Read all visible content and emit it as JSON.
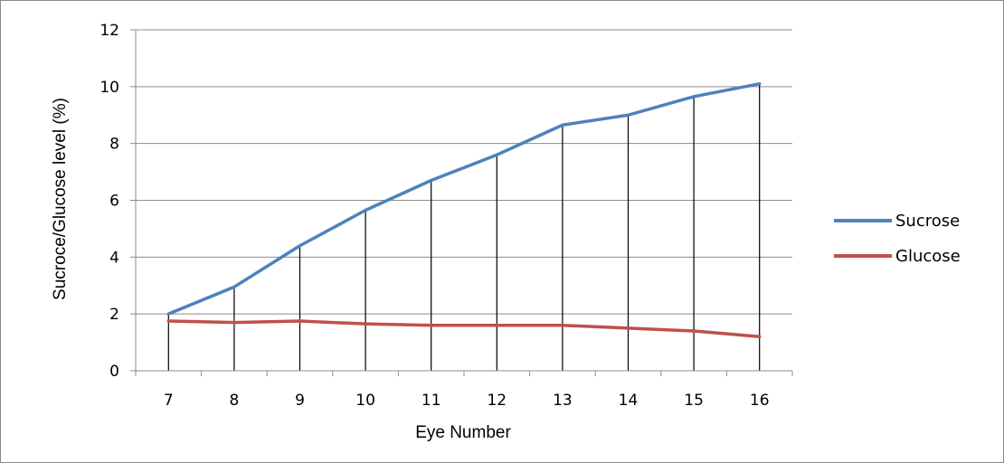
{
  "chart_data": {
    "type": "line",
    "title": "",
    "xlabel": "Eye Number",
    "ylabel": "Sucroce/Glucose level (%)",
    "categories": [
      "7",
      "8",
      "9",
      "10",
      "11",
      "12",
      "13",
      "14",
      "15",
      "16"
    ],
    "ylim": [
      0,
      12
    ],
    "yticks": [
      "0",
      "2",
      "4",
      "6",
      "8",
      "10",
      "12"
    ],
    "grid": true,
    "drop_lines": true,
    "legend_position": "right",
    "series": [
      {
        "name": "Sucrose",
        "color": "#4f81bd",
        "values": [
          2.0,
          2.95,
          4.4,
          5.65,
          6.7,
          7.6,
          8.65,
          9.0,
          9.65,
          10.1
        ]
      },
      {
        "name": "Glucose",
        "color": "#c0504d",
        "values": [
          1.75,
          1.7,
          1.75,
          1.65,
          1.6,
          1.6,
          1.6,
          1.5,
          1.4,
          1.2
        ]
      }
    ]
  }
}
